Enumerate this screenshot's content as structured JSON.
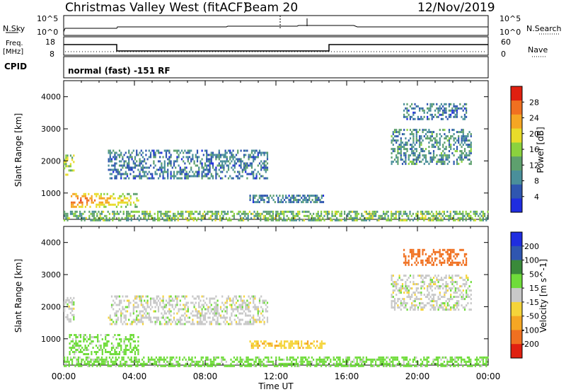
{
  "header": {
    "station": "Christmas Valley West (fitACF)",
    "beam": "Beam 20",
    "date": "12/Nov/2019"
  },
  "noise_panel": {
    "left_label": "N.Sky",
    "left_ticks": [
      "10^5",
      "10^0"
    ],
    "right_ticks": [
      "10^5",
      "10^0"
    ],
    "right_label": "N.Search"
  },
  "freq_panel": {
    "left_label_line1": "Freq.",
    "left_label_line2": "[MHz]",
    "left_ticks": [
      "18",
      "8"
    ],
    "right_ticks": [
      "60",
      "0"
    ],
    "right_label": "Nave"
  },
  "cpid_panel": {
    "label": "CPID",
    "text": "normal (fast) -151 RF"
  },
  "chart_data": [
    {
      "type": "heatmap",
      "name": "power",
      "ylabel": "Slant Range [km]",
      "xlabel": "Time UT",
      "x_ticks": [
        "00:00",
        "04:00",
        "08:00",
        "12:00",
        "16:00",
        "20:00",
        "00:00"
      ],
      "xlim_hours": [
        0,
        24
      ],
      "y_ticks": [
        1000,
        2000,
        3000,
        4000
      ],
      "ylim_km": [
        180,
        4500
      ],
      "colorbar": {
        "label": "Power [dB]",
        "ticks": [
          4,
          8,
          12,
          16,
          20,
          24,
          28
        ],
        "range": [
          0,
          32
        ],
        "colors": [
          "#1f2de0",
          "#2f56b0",
          "#4a8f9a",
          "#5ea06e",
          "#8bd23e",
          "#e8dc2a",
          "#f5a623",
          "#f07020",
          "#e02010"
        ]
      },
      "regions": [
        {
          "t0": 0.0,
          "t1": 0.6,
          "r0": 1550,
          "r1": 2200,
          "level": 16
        },
        {
          "t0": 0.4,
          "t1": 4.2,
          "r0": 600,
          "r1": 1000,
          "level": 22
        },
        {
          "t0": 2.5,
          "t1": 11.5,
          "r0": 1450,
          "r1": 2350,
          "level": 8
        },
        {
          "t0": 10.5,
          "t1": 14.8,
          "r0": 720,
          "r1": 950,
          "level": 8
        },
        {
          "t0": 18.5,
          "t1": 23.0,
          "r0": 1900,
          "r1": 3000,
          "level": 10
        },
        {
          "t0": 19.2,
          "t1": 22.8,
          "r0": 3300,
          "r1": 3800,
          "level": 8
        },
        {
          "t0": 0.0,
          "t1": 24.0,
          "r0": 180,
          "r1": 450,
          "level": 14
        }
      ]
    },
    {
      "type": "heatmap",
      "name": "velocity",
      "ylabel": "Slant Range [km]",
      "xlabel": "Time UT",
      "x_ticks": [
        "00:00",
        "04:00",
        "08:00",
        "12:00",
        "16:00",
        "20:00",
        "00:00"
      ],
      "xlim_hours": [
        0,
        24
      ],
      "y_ticks": [
        1000,
        2000,
        3000,
        4000
      ],
      "ylim_km": [
        180,
        4500
      ],
      "colorbar": {
        "label": "Velocity [m s^-1]",
        "ticks": [
          200,
          100,
          50,
          15,
          -15,
          -50,
          -100,
          -200
        ],
        "colors": [
          "#1f2de0",
          "#2f56b0",
          "#3a8a3a",
          "#6fdc3a",
          "#c8c8c8",
          "#f5d43a",
          "#f5a623",
          "#f07020",
          "#e02010"
        ]
      },
      "regions": [
        {
          "t0": 0.0,
          "t1": 0.6,
          "r0": 1550,
          "r1": 2300,
          "level": 0
        },
        {
          "t0": 0.3,
          "t1": 4.2,
          "r0": 500,
          "r1": 1150,
          "level": 30
        },
        {
          "t0": 2.5,
          "t1": 11.5,
          "r0": 1450,
          "r1": 2350,
          "level": 0
        },
        {
          "t0": 10.5,
          "t1": 14.8,
          "r0": 720,
          "r1": 950,
          "level": -40
        },
        {
          "t0": 18.5,
          "t1": 23.0,
          "r0": 1900,
          "r1": 3000,
          "level": 0
        },
        {
          "t0": 19.2,
          "t1": 22.8,
          "r0": 3300,
          "r1": 3800,
          "level": -150
        },
        {
          "t0": 0.0,
          "t1": 24.0,
          "r0": 180,
          "r1": 450,
          "level": 30
        }
      ]
    }
  ]
}
